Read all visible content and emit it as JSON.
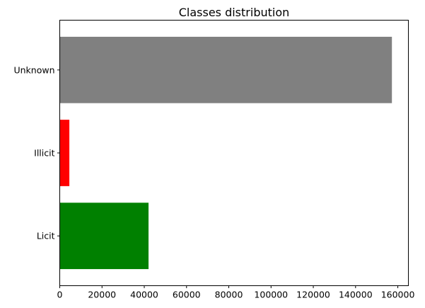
{
  "chart_data": {
    "type": "bar",
    "orientation": "horizontal",
    "title": "Classes distribution",
    "xlabel": "",
    "ylabel": "",
    "categories": [
      "Licit",
      "Illicit",
      "Unknown"
    ],
    "values": [
      42019,
      4545,
      157205
    ],
    "colors": [
      "#008000",
      "#ff0000",
      "#808080"
    ],
    "xlim": [
      0,
      165000
    ],
    "xticks": [
      0,
      20000,
      40000,
      60000,
      80000,
      100000,
      120000,
      140000,
      160000
    ],
    "xtick_labels": [
      "0",
      "20000",
      "40000",
      "60000",
      "80000",
      "100000",
      "120000",
      "140000",
      "160000"
    ],
    "grid": false,
    "legend": "none"
  }
}
